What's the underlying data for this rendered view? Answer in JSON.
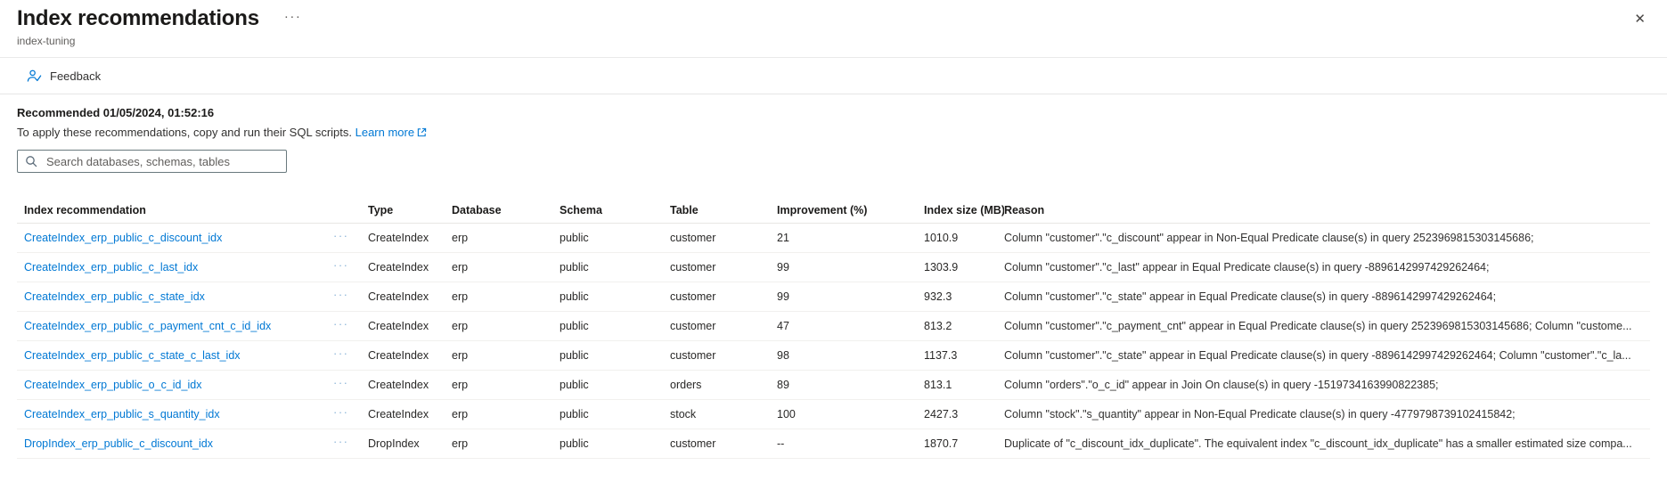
{
  "header": {
    "title": "Index recommendations",
    "subtitle": "index-tuning"
  },
  "icons": {
    "more_dots": "···",
    "close": "✕"
  },
  "toolbar": {
    "feedback_label": "Feedback"
  },
  "info": {
    "recommended_line": "Recommended 01/05/2024, 01:52:16",
    "apply_text": "To apply these recommendations, copy and run their SQL scripts.",
    "learn_more_label": "Learn more"
  },
  "search": {
    "placeholder": "Search databases, schemas, tables"
  },
  "colors": {
    "accent": "#0078d4",
    "text": "#323130",
    "muted": "#605e5c",
    "divider": "#e8e6e4"
  },
  "table": {
    "columns": [
      "Index recommendation",
      "Type",
      "Database",
      "Schema",
      "Table",
      "Improvement (%)",
      "Index size (MB)",
      "Reason"
    ],
    "rows": [
      {
        "name": "CreateIndex_erp_public_c_discount_idx",
        "type": "CreateIndex",
        "database": "erp",
        "schema": "public",
        "table": "customer",
        "improvement": "21",
        "size": "1010.9",
        "reason": "Column \"customer\".\"c_discount\" appear in Non-Equal Predicate clause(s) in query 2523969815303145686;"
      },
      {
        "name": "CreateIndex_erp_public_c_last_idx",
        "type": "CreateIndex",
        "database": "erp",
        "schema": "public",
        "table": "customer",
        "improvement": "99",
        "size": "1303.9",
        "reason": "Column \"customer\".\"c_last\" appear in Equal Predicate clause(s) in query -8896142997429262464;"
      },
      {
        "name": "CreateIndex_erp_public_c_state_idx",
        "type": "CreateIndex",
        "database": "erp",
        "schema": "public",
        "table": "customer",
        "improvement": "99",
        "size": "932.3",
        "reason": "Column \"customer\".\"c_state\" appear in Equal Predicate clause(s) in query -8896142997429262464;"
      },
      {
        "name": "CreateIndex_erp_public_c_payment_cnt_c_id_idx",
        "type": "CreateIndex",
        "database": "erp",
        "schema": "public",
        "table": "customer",
        "improvement": "47",
        "size": "813.2",
        "reason": "Column \"customer\".\"c_payment_cnt\" appear in Equal Predicate clause(s) in query 2523969815303145686; Column \"custome..."
      },
      {
        "name": "CreateIndex_erp_public_c_state_c_last_idx",
        "type": "CreateIndex",
        "database": "erp",
        "schema": "public",
        "table": "customer",
        "improvement": "98",
        "size": "1137.3",
        "reason": "Column \"customer\".\"c_state\" appear in Equal Predicate clause(s) in query -8896142997429262464; Column \"customer\".\"c_la..."
      },
      {
        "name": "CreateIndex_erp_public_o_c_id_idx",
        "type": "CreateIndex",
        "database": "erp",
        "schema": "public",
        "table": "orders",
        "improvement": "89",
        "size": "813.1",
        "reason": "Column \"orders\".\"o_c_id\" appear in Join On clause(s) in query -1519734163990822385;"
      },
      {
        "name": "CreateIndex_erp_public_s_quantity_idx",
        "type": "CreateIndex",
        "database": "erp",
        "schema": "public",
        "table": "stock",
        "improvement": "100",
        "size": "2427.3",
        "reason": "Column \"stock\".\"s_quantity\" appear in Non-Equal Predicate clause(s) in query -4779798739102415842;"
      },
      {
        "name": "DropIndex_erp_public_c_discount_idx",
        "type": "DropIndex",
        "database": "erp",
        "schema": "public",
        "table": "customer",
        "improvement": "--",
        "size": "1870.7",
        "reason": "Duplicate of \"c_discount_idx_duplicate\". The equivalent index \"c_discount_idx_duplicate\" has a smaller estimated size compa..."
      }
    ]
  }
}
